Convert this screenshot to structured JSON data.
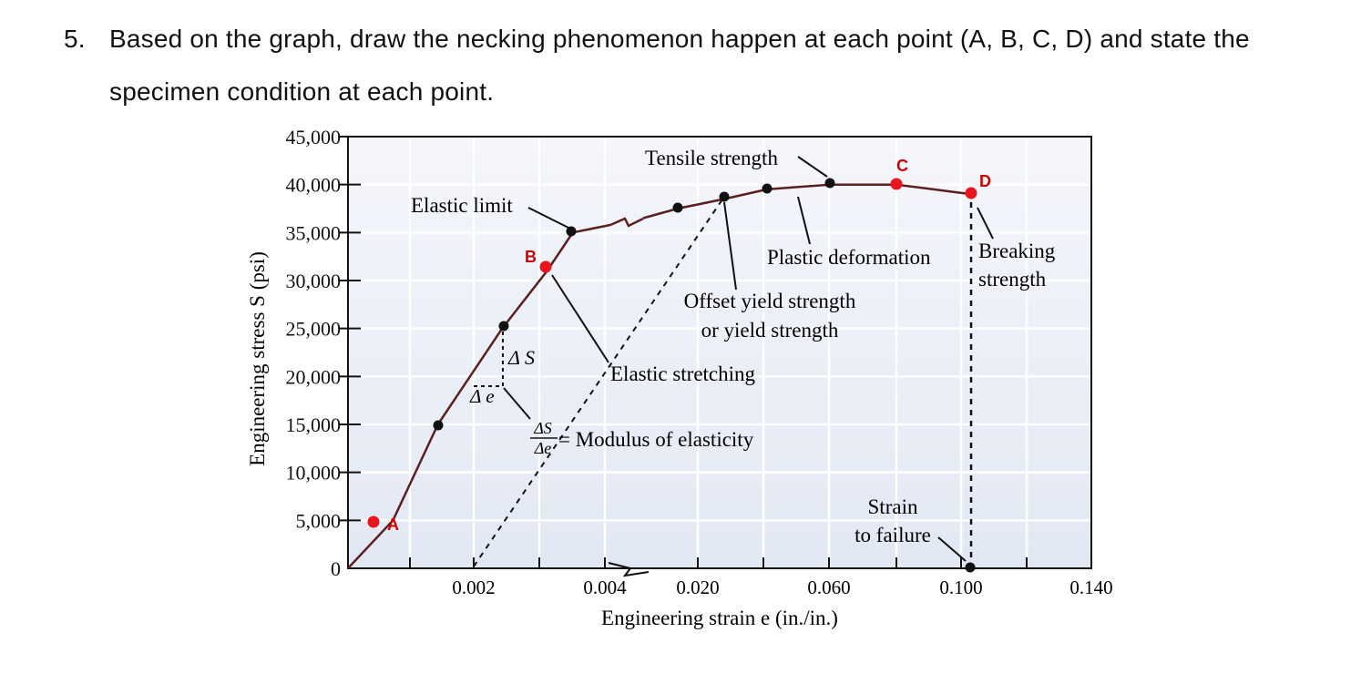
{
  "question": {
    "number": "5.",
    "text": "Based on the graph, draw the necking phenomenon happen at each point (A, B, C, D) and state the specimen condition at each point."
  },
  "chart_data": {
    "type": "line",
    "xlabel": "Engineering strain e (in./in.)",
    "ylabel": "Engineering stress S (psi)",
    "x_ticks_elastic": [
      "0.002",
      "0.004"
    ],
    "x_ticks_plastic": [
      "0.020",
      "0.060",
      "0.100",
      "0.140"
    ],
    "y_ticks": [
      "0",
      "5,000",
      "10,000",
      "15,000",
      "20,000",
      "25,000",
      "30,000",
      "35,000",
      "40,000",
      "45,000"
    ],
    "ylim": [
      0,
      45000
    ],
    "grid": true,
    "axis_break": "between 0.004 and 0.020",
    "series": [
      {
        "segment": "elastic",
        "x": [
          0,
          0.0007,
          0.0014,
          0.0024,
          0.0031,
          0.0035
        ],
        "y": [
          0,
          5000,
          15000,
          25000,
          31000,
          35000
        ]
      },
      {
        "segment": "plastic",
        "x": [
          0.0035,
          0.016,
          0.024,
          0.04,
          0.06,
          0.08,
          0.102
        ],
        "y": [
          35000,
          37500,
          38500,
          39500,
          40000,
          40000,
          39000
        ]
      }
    ],
    "marked_points": [
      {
        "label": "A",
        "x": 0.0007,
        "y": 5000
      },
      {
        "label": "B",
        "x": 0.0031,
        "y": 31000
      },
      {
        "label": "C",
        "x": 0.08,
        "y": 40000
      },
      {
        "label": "D",
        "x": 0.102,
        "y": 39000
      }
    ],
    "annotations": {
      "tensile_strength": "Tensile strength",
      "elastic_limit": "Elastic limit",
      "plastic_deformation": "Plastic deformation",
      "breaking_strength_1": "Breaking",
      "breaking_strength_2": "strength",
      "offset_yield_1": "Offset yield strength",
      "offset_yield_2": "or yield strength",
      "elastic_stretching": "Elastic stretching",
      "delta_s": "Δ S",
      "delta_e": "Δ e",
      "modulus_num": "ΔS",
      "modulus_den": "Δe",
      "modulus_text": "= Modulus of elasticity",
      "strain_failure_1": "Strain",
      "strain_failure_2": "to failure"
    },
    "colors": {
      "curve": "#5a1f1f",
      "marked_point": "#e8141e",
      "label": "#cc0000",
      "plot_bg": "#e9eef7"
    }
  }
}
